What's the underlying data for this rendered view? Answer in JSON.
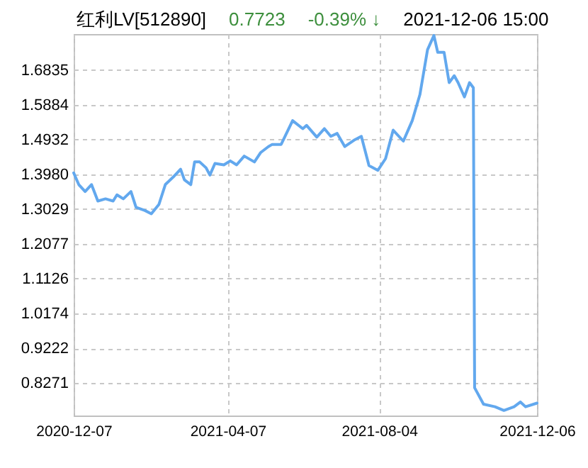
{
  "chart_data": {
    "type": "line",
    "title": "红利LV[512890]",
    "annotations": [
      "0.7723",
      "-0.39% ↓",
      "2021-12-06 15:00"
    ],
    "x": [
      "2020-12-07",
      "2020-12-11",
      "2020-12-16",
      "2020-12-21",
      "2020-12-26",
      "2021-01-01",
      "2021-01-07",
      "2021-01-10",
      "2021-01-15",
      "2021-01-21",
      "2021-01-25",
      "2021-02-01",
      "2021-02-06",
      "2021-02-12",
      "2021-02-17",
      "2021-02-23",
      "2021-03-01",
      "2021-03-04",
      "2021-03-09",
      "2021-03-12",
      "2021-03-16",
      "2021-03-21",
      "2021-03-24",
      "2021-03-28",
      "2021-04-04",
      "2021-04-09",
      "2021-04-14",
      "2021-04-20",
      "2021-04-28",
      "2021-05-03",
      "2021-05-09",
      "2021-05-12",
      "2021-05-19",
      "2021-05-28",
      "2021-06-05",
      "2021-06-08",
      "2021-06-16",
      "2021-06-22",
      "2021-06-27",
      "2021-07-02",
      "2021-07-08",
      "2021-07-16",
      "2021-07-21",
      "2021-07-27",
      "2021-08-03",
      "2021-08-09",
      "2021-08-15",
      "2021-08-23",
      "2021-08-30",
      "2021-09-05",
      "2021-09-11",
      "2021-09-16",
      "2021-09-19",
      "2021-09-24",
      "2021-09-28",
      "2021-10-02",
      "2021-10-05",
      "2021-10-10",
      "2021-10-14",
      "2021-10-17",
      "2021-10-18",
      "2021-10-25",
      "2021-11-03",
      "2021-11-10",
      "2021-11-18",
      "2021-11-23",
      "2021-11-27",
      "2021-12-06"
    ],
    "series": [
      {
        "color": "#62a8ee",
        "values": [
          1.402,
          1.37,
          1.351,
          1.37,
          1.325,
          1.331,
          1.325,
          1.342,
          1.331,
          1.351,
          1.308,
          1.299,
          1.29,
          1.316,
          1.37,
          1.39,
          1.412,
          1.383,
          1.37,
          1.432,
          1.432,
          1.416,
          1.396,
          1.428,
          1.424,
          1.435,
          1.424,
          1.448,
          1.432,
          1.458,
          1.474,
          1.48,
          1.48,
          1.545,
          1.523,
          1.532,
          1.5,
          1.523,
          1.502,
          1.51,
          1.474,
          1.493,
          1.502,
          1.422,
          1.409,
          1.441,
          1.519,
          1.489,
          1.545,
          1.616,
          1.739,
          1.778,
          1.732,
          1.732,
          1.649,
          1.668,
          1.649,
          1.61,
          1.649,
          1.635,
          0.814,
          0.769,
          0.762,
          0.752,
          0.762,
          0.775,
          0.762,
          0.772
        ]
      }
    ],
    "xlim": [
      "2020-12-07",
      "2021-12-06"
    ],
    "xticks": [
      "2020-12-07",
      "2021-04-07",
      "2021-08-04",
      "2021-12-06"
    ],
    "ylim": [
      0.738,
      1.782
    ],
    "yticks": [
      0.8271,
      0.9222,
      1.0174,
      1.1126,
      1.2077,
      1.3029,
      {
        "value": 1.398,
        "label": "1.3980"
      },
      1.4932,
      1.5884,
      1.6835
    ],
    "grid": true,
    "line_style": "solid"
  }
}
